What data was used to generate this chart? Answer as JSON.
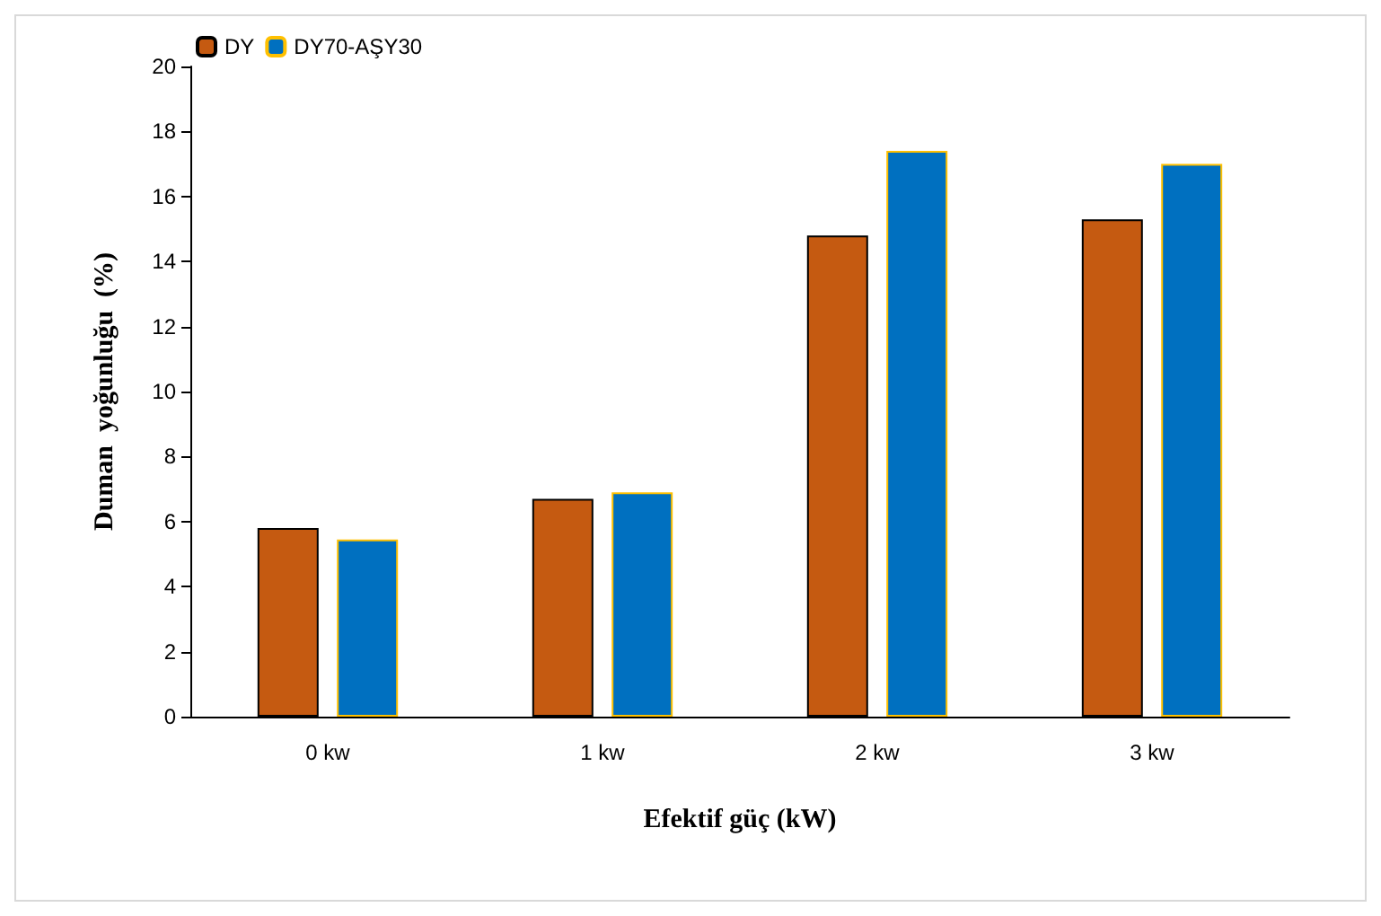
{
  "chart_data": {
    "type": "bar",
    "xlabel": "Efektif güç (kW)",
    "ylabel": "Duman  yoğunluğu  (%)",
    "categories": [
      "0 kw",
      "1 kw",
      "2 kw",
      "3 kw"
    ],
    "series": [
      {
        "name": "DY",
        "color": "#c55a11",
        "values": [
          5.8,
          6.7,
          14.8,
          15.3
        ]
      },
      {
        "name": "DY70-AŞY30",
        "color": "#0070c0",
        "values": [
          5.45,
          6.9,
          17.4,
          17.0
        ]
      }
    ],
    "ylim": [
      0,
      20
    ],
    "yticks": [
      0,
      2,
      4,
      6,
      8,
      10,
      12,
      14,
      16,
      18,
      20
    ],
    "grid": false,
    "legend": "top left"
  }
}
